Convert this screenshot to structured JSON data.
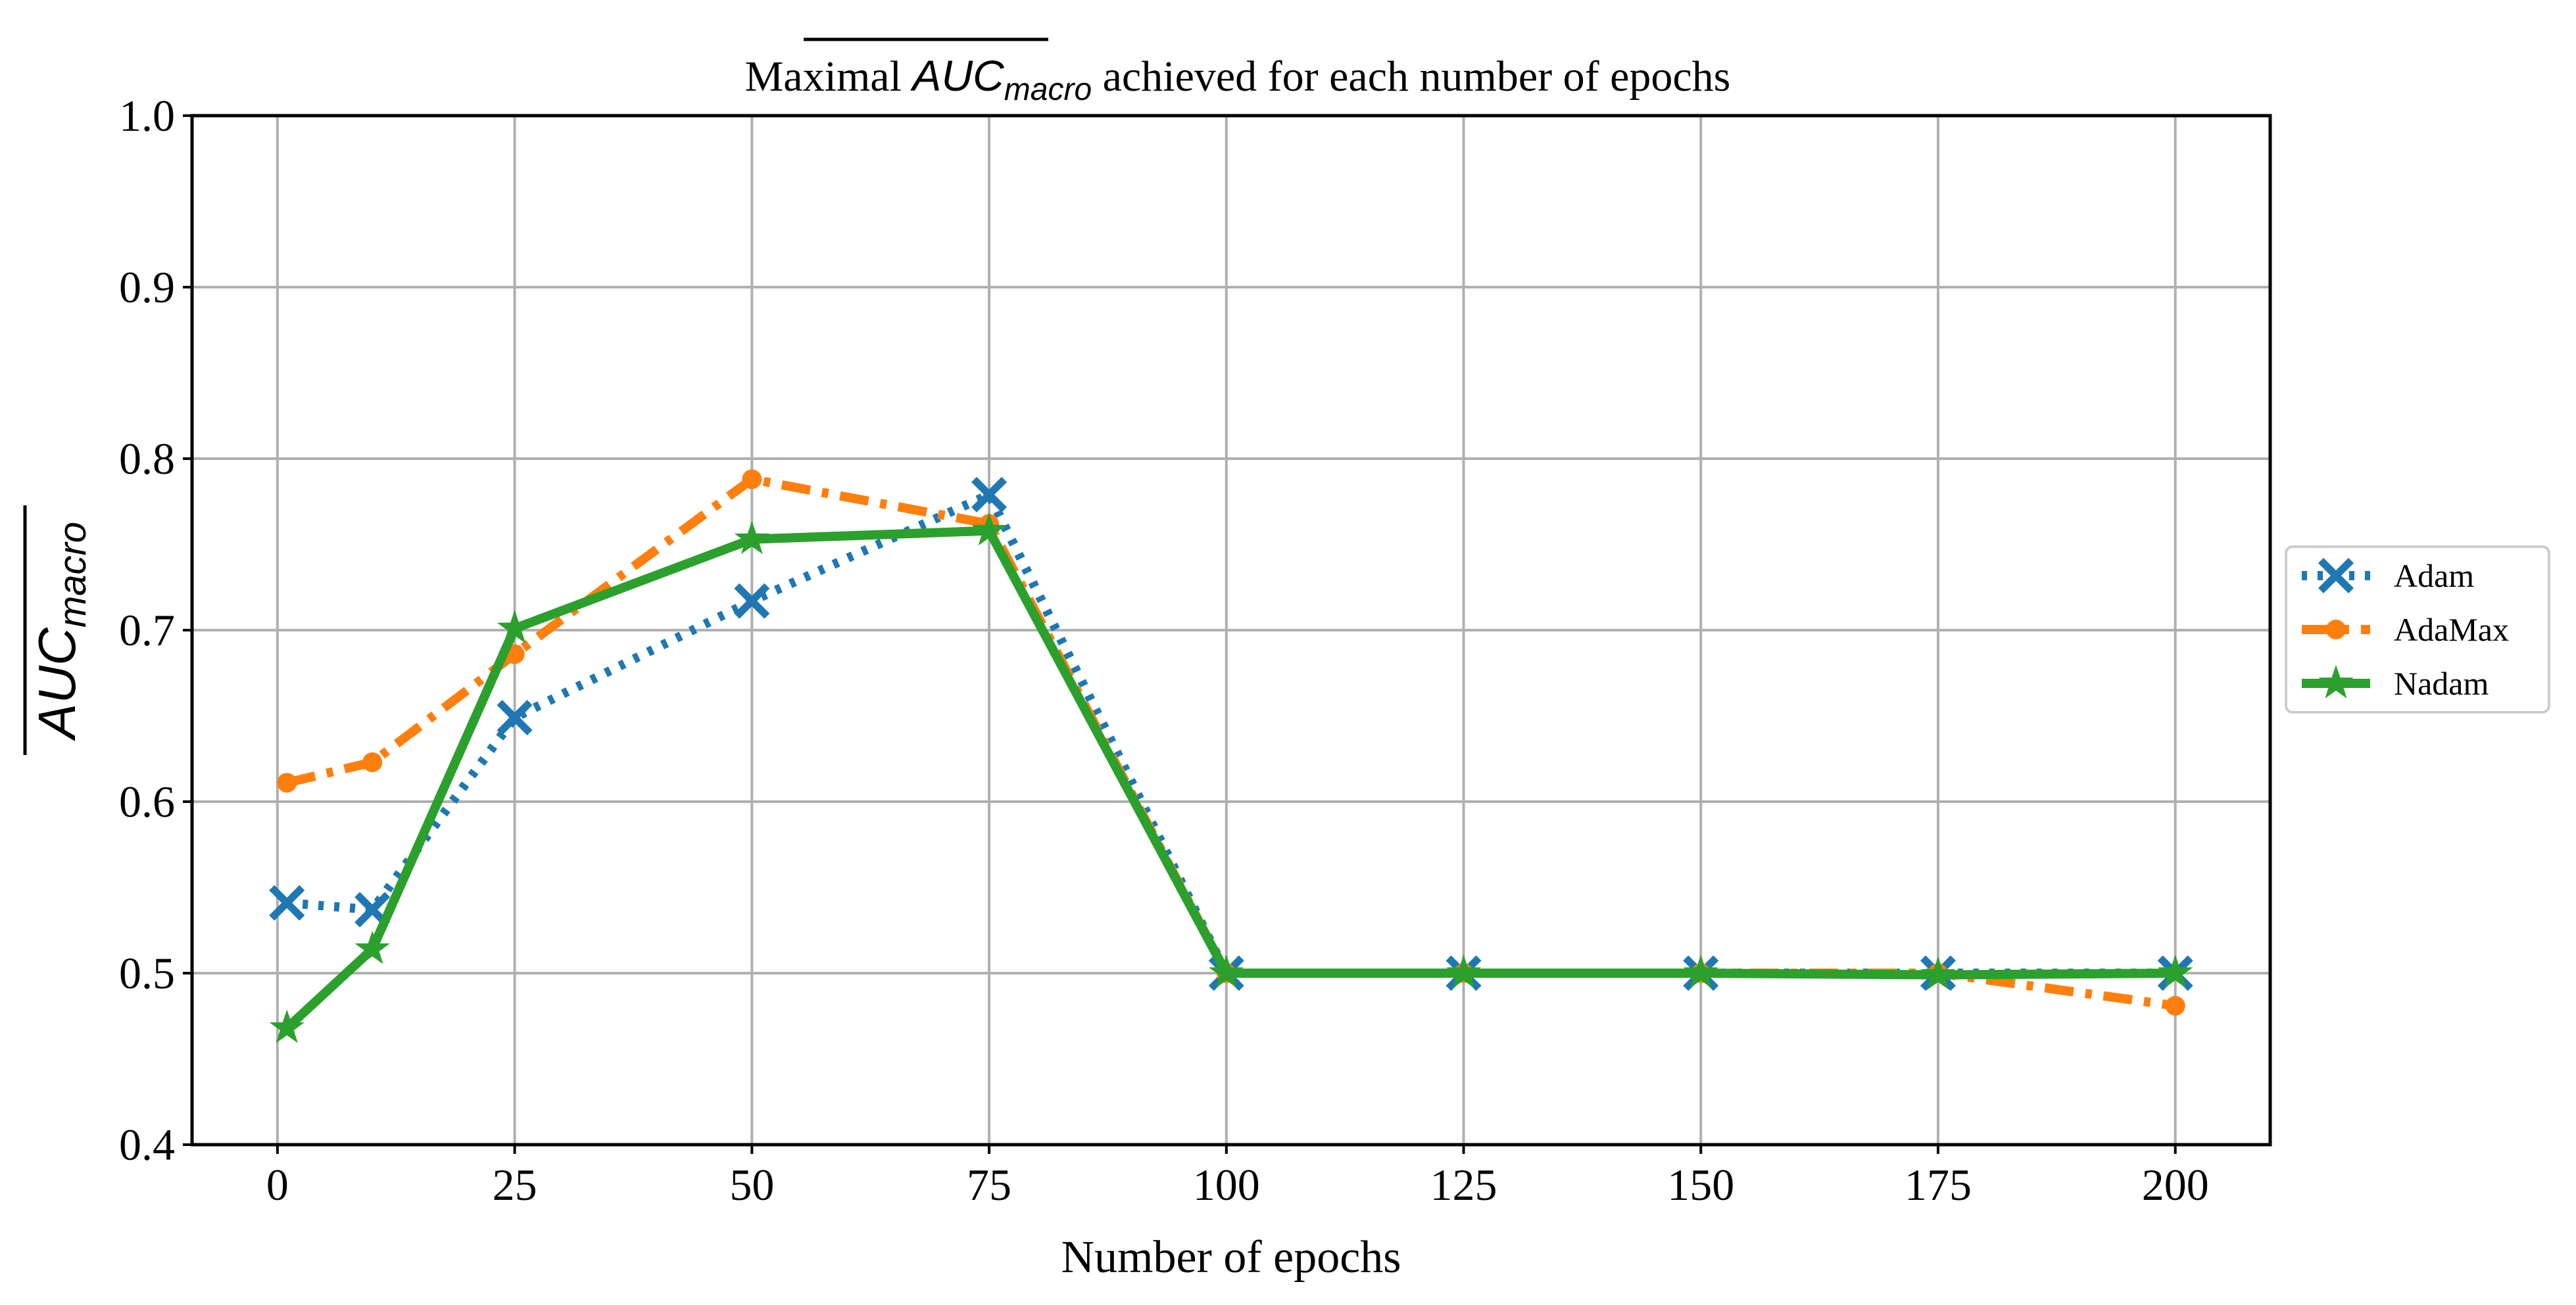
{
  "chart_data": {
    "type": "line",
    "title": {
      "prefix": "Maximal",
      "symbol_main": "AUC",
      "symbol_sub": "macro",
      "suffix": "achieved for each number of epochs"
    },
    "xlabel": "Number of epochs",
    "ylabel": {
      "main": "AUC",
      "sub": "macro"
    },
    "x_positions": [
      1,
      10,
      25,
      50,
      75,
      100,
      125,
      150,
      175,
      200
    ],
    "xticks": [
      0,
      25,
      50,
      75,
      100,
      125,
      150,
      175,
      200
    ],
    "xtick_labels": [
      "0",
      "25",
      "50",
      "75",
      "100",
      "125",
      "150",
      "175",
      "200"
    ],
    "yticks": [
      0.4,
      0.5,
      0.6,
      0.7,
      0.8,
      0.9,
      1.0
    ],
    "ytick_labels": [
      "0.4",
      "0.5",
      "0.6",
      "0.7",
      "0.8",
      "0.9",
      "1.0"
    ],
    "xlim": [
      -9,
      210
    ],
    "ylim": [
      0.4,
      1.0
    ],
    "grid": true,
    "legend_placement": "outside-right",
    "series": [
      {
        "name": "Adam",
        "color": "#1f77b4",
        "line_style": "dotted",
        "marker": "x-filled",
        "values": [
          0.541,
          0.537,
          0.649,
          0.717,
          0.779,
          0.5,
          0.5,
          0.5,
          0.5,
          0.5
        ]
      },
      {
        "name": "AdaMax",
        "color": "#ff7f0e",
        "line_style": "dash-dot",
        "marker": "circle",
        "values": [
          0.611,
          0.623,
          0.686,
          0.788,
          0.762,
          0.5,
          0.5,
          0.5,
          0.5,
          0.481
        ]
      },
      {
        "name": "Nadam",
        "color": "#2ca02c",
        "line_style": "solid",
        "marker": "star",
        "values": [
          0.468,
          0.514,
          0.701,
          0.753,
          0.758,
          0.5,
          0.5,
          0.5,
          0.499,
          0.5
        ]
      }
    ]
  }
}
